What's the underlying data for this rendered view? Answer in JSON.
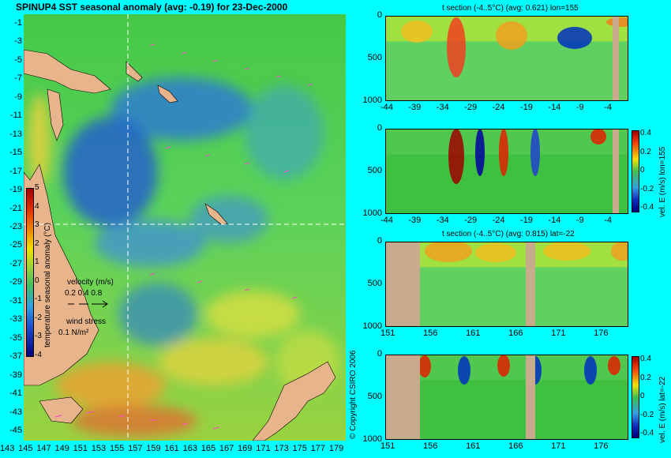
{
  "map": {
    "title": "SPINUP4 SST seasonal anomaly (avg: -0.19) for 23-Dec-2000",
    "lat_ticks": [
      "-1",
      "-3",
      "-5",
      "-7",
      "-9",
      "-11",
      "-13",
      "-15",
      "-17",
      "-19",
      "-21",
      "-23",
      "-25",
      "-27",
      "-29",
      "-31",
      "-33",
      "-35",
      "-37",
      "-39",
      "-41",
      "-43",
      "-45"
    ],
    "lon_ticks": [
      "143",
      "145",
      "147",
      "149",
      "151",
      "153",
      "155",
      "157",
      "159",
      "161",
      "163",
      "165",
      "167",
      "169",
      "171",
      "173",
      "175",
      "177",
      "179"
    ],
    "colorbar": {
      "ticks": [
        "5",
        "4",
        "3",
        "2",
        "1",
        "0",
        "-1",
        "-2",
        "-3",
        "-4"
      ],
      "label": "temperature seasonal anomaly (°C)"
    },
    "velocity_legend": {
      "title": "velocity (m/s)",
      "values": "0.2 0.4 0.8"
    },
    "wind_legend": {
      "title": "wind stress",
      "value": "0.1 N/m²"
    },
    "copyright": "© Copyright CSIRO 2006",
    "colors": {
      "land": "#e8b48c",
      "cold": "#1e5ad2",
      "neutral": "#4cc84c",
      "warm": "#f0d23c",
      "hot": "#e07030",
      "vector": "#ff44cc"
    }
  },
  "panels": [
    {
      "title": "t section (-4..5°C) (avg: 0.621) lon=155",
      "x_ticks": [
        "-44",
        "-39",
        "-34",
        "-29",
        "-24",
        "-19",
        "-14",
        "-9",
        "-4"
      ],
      "y_ticks": [
        "0",
        "500",
        "1000"
      ]
    },
    {
      "title": "",
      "x_ticks": [
        "-44",
        "-39",
        "-34",
        "-29",
        "-24",
        "-19",
        "-14",
        "-9",
        "-4"
      ],
      "y_ticks": [
        "0",
        "500",
        "1000"
      ],
      "colorbar_ticks": [
        "0.4",
        "0.2",
        "0",
        "-0.2",
        "-0.4"
      ],
      "side_label": "vel. E (m/s) lon=155"
    },
    {
      "title": "t section (-4..5°C) (avg: 0.815) lat=-22",
      "x_ticks": [
        "151",
        "156",
        "161",
        "166",
        "171",
        "176"
      ],
      "y_ticks": [
        "0",
        "500",
        "1000"
      ]
    },
    {
      "title": "",
      "x_ticks": [
        "151",
        "156",
        "161",
        "166",
        "171",
        "176"
      ],
      "y_ticks": [
        "0",
        "500",
        "1000"
      ],
      "colorbar_ticks": [
        "0.4",
        "0.2",
        "0",
        "-0.2",
        "-0.4"
      ],
      "side_label": "vel. E (m/s) lat=-22"
    }
  ],
  "chart_data": {
    "type": "heatmap",
    "title": "SPINUP4 SST seasonal anomaly (avg: -0.19) for 23-Dec-2000",
    "xlim": [
      143,
      180
    ],
    "ylim": [
      -45,
      0
    ],
    "color_range": [
      -4,
      5
    ],
    "mean": -0.19,
    "date": "23-Dec-2000",
    "section_lon": 155,
    "section_lat": -22
  }
}
